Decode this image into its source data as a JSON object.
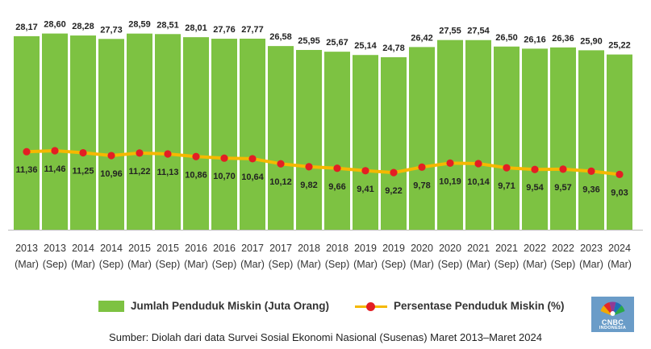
{
  "chart_data": {
    "type": "bar",
    "categories": [
      {
        "year": "2013",
        "period": "(Mar)"
      },
      {
        "year": "2013",
        "period": "(Sep)"
      },
      {
        "year": "2014",
        "period": "(Mar)"
      },
      {
        "year": "2014",
        "period": "(Sep)"
      },
      {
        "year": "2015",
        "period": "(Mar)"
      },
      {
        "year": "2015",
        "period": "(Sep)"
      },
      {
        "year": "2016",
        "period": "(Mar)"
      },
      {
        "year": "2016",
        "period": "(Sep)"
      },
      {
        "year": "2017",
        "period": "(Mar)"
      },
      {
        "year": "2017",
        "period": "(Sep)"
      },
      {
        "year": "2018",
        "period": "(Mar)"
      },
      {
        "year": "2018",
        "period": "(Sep)"
      },
      {
        "year": "2019",
        "period": "(Mar)"
      },
      {
        "year": "2019",
        "period": "(Sep)"
      },
      {
        "year": "2020",
        "period": "(Mar)"
      },
      {
        "year": "2020",
        "period": "(Sep)"
      },
      {
        "year": "2021",
        "period": "(Mar)"
      },
      {
        "year": "2021",
        "period": "(Sep)"
      },
      {
        "year": "2022",
        "period": "(Mar)"
      },
      {
        "year": "2022",
        "period": "(Sep)"
      },
      {
        "year": "2023",
        "period": "(Mar)"
      },
      {
        "year": "2024",
        "period": "(Mar)"
      }
    ],
    "series": [
      {
        "name": "Jumlah Penduduk Miskin (Juta Orang)",
        "type": "bar",
        "color": "#7dc242",
        "values": [
          28.17,
          28.6,
          28.28,
          27.73,
          28.59,
          28.51,
          28.01,
          27.76,
          27.77,
          26.58,
          25.95,
          25.67,
          25.14,
          24.78,
          26.42,
          27.55,
          27.54,
          26.5,
          26.16,
          26.36,
          25.9,
          25.22
        ],
        "labels": [
          "28,17",
          "28,60",
          "28,28",
          "27,73",
          "28,59",
          "28,51",
          "28,01",
          "27,76",
          "27,77",
          "26,58",
          "25,95",
          "25,67",
          "25,14",
          "24,78",
          "26,42",
          "27,55",
          "27,54",
          "26,50",
          "26,16",
          "26,36",
          "25,90",
          "25,22"
        ]
      },
      {
        "name": "Persentase Penduduk Miskin (%)",
        "type": "line",
        "color": "#f5b800",
        "marker_color": "#e31e24",
        "values": [
          11.36,
          11.46,
          11.25,
          10.96,
          11.22,
          11.13,
          10.86,
          10.7,
          10.64,
          10.12,
          9.82,
          9.66,
          9.41,
          9.22,
          9.78,
          10.19,
          10.14,
          9.71,
          9.54,
          9.57,
          9.36,
          9.03
        ],
        "labels": [
          "11,36",
          "11,46",
          "11,25",
          "10,96",
          "11,22",
          "11,13",
          "10,86",
          "10,70",
          "10,64",
          "10,12",
          "9,82",
          "9,66",
          "9,41",
          "9,22",
          "9,78",
          "10,19",
          "10,14",
          "9,71",
          "9,54",
          "9,57",
          "9,36",
          "9,03"
        ]
      }
    ],
    "grid": false,
    "legend_position": "bottom"
  },
  "legend": {
    "bar_label": "Jumlah Penduduk Miskin (Juta Orang)",
    "line_label": "Persentase Penduduk Miskin (%)"
  },
  "source": "Sumber: Diolah dari data Survei Sosial Ekonomi Nasional (Susenas) Maret 2013–Maret 2024",
  "logo": {
    "text": "CNBC",
    "subtext": "INDONESIA",
    "color": "#6a9cc8"
  }
}
